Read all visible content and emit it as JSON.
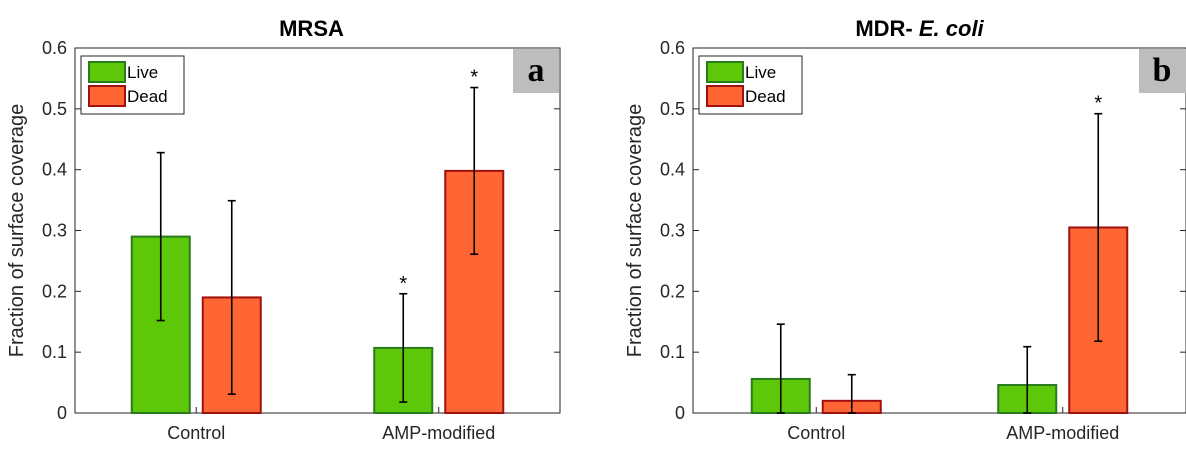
{
  "chart_data": [
    {
      "type": "bar",
      "title": "MRSA",
      "title_parts": [
        {
          "text": "MRSA",
          "italic": false
        }
      ],
      "panel_tag": "a",
      "ylabel": "Fraction of surface coverage",
      "xlabel": "",
      "ylim": [
        0,
        0.6
      ],
      "yticks": [
        0,
        0.1,
        0.2,
        0.3,
        0.4,
        0.5,
        0.6
      ],
      "ytick_labels": [
        "0",
        "0.1",
        "0.2",
        "0.3",
        "0.4",
        "0.5",
        "0.6"
      ],
      "categories": [
        "Control",
        "AMP-modified"
      ],
      "legend_position": "top-left",
      "grid": false,
      "series": [
        {
          "name": "Live",
          "color": "#5cc808",
          "edge": "#2a7a1e",
          "values": [
            0.29,
            0.107
          ],
          "error": [
            0.138,
            0.089
          ],
          "significance": [
            "",
            "*"
          ]
        },
        {
          "name": "Dead",
          "color": "#ff6633",
          "edge": "#a01010",
          "values": [
            0.19,
            0.398
          ],
          "error": [
            0.159,
            0.137
          ],
          "significance": [
            "",
            "*"
          ]
        }
      ]
    },
    {
      "type": "bar",
      "title": "MDR- E. coli",
      "title_parts": [
        {
          "text": "MDR- ",
          "italic": false
        },
        {
          "text": "E. coli",
          "italic": true
        }
      ],
      "panel_tag": "b",
      "ylabel": "Fraction of surface coverage",
      "xlabel": "",
      "ylim": [
        0,
        0.6
      ],
      "yticks": [
        0,
        0.1,
        0.2,
        0.3,
        0.4,
        0.5,
        0.6
      ],
      "ytick_labels": [
        "0",
        "0.1",
        "0.2",
        "0.3",
        "0.4",
        "0.5",
        "0.6"
      ],
      "categories": [
        "Control",
        "AMP-modified"
      ],
      "legend_position": "top-left",
      "grid": false,
      "series": [
        {
          "name": "Live",
          "color": "#5cc808",
          "edge": "#2a7a1e",
          "values": [
            0.056,
            0.046
          ],
          "error": [
            0.09,
            0.063
          ],
          "significance": [
            "",
            ""
          ]
        },
        {
          "name": "Dead",
          "color": "#ff6633",
          "edge": "#a01010",
          "values": [
            0.02,
            0.305
          ],
          "error": [
            0.043,
            0.187
          ],
          "significance": [
            "",
            "*"
          ]
        }
      ]
    }
  ]
}
